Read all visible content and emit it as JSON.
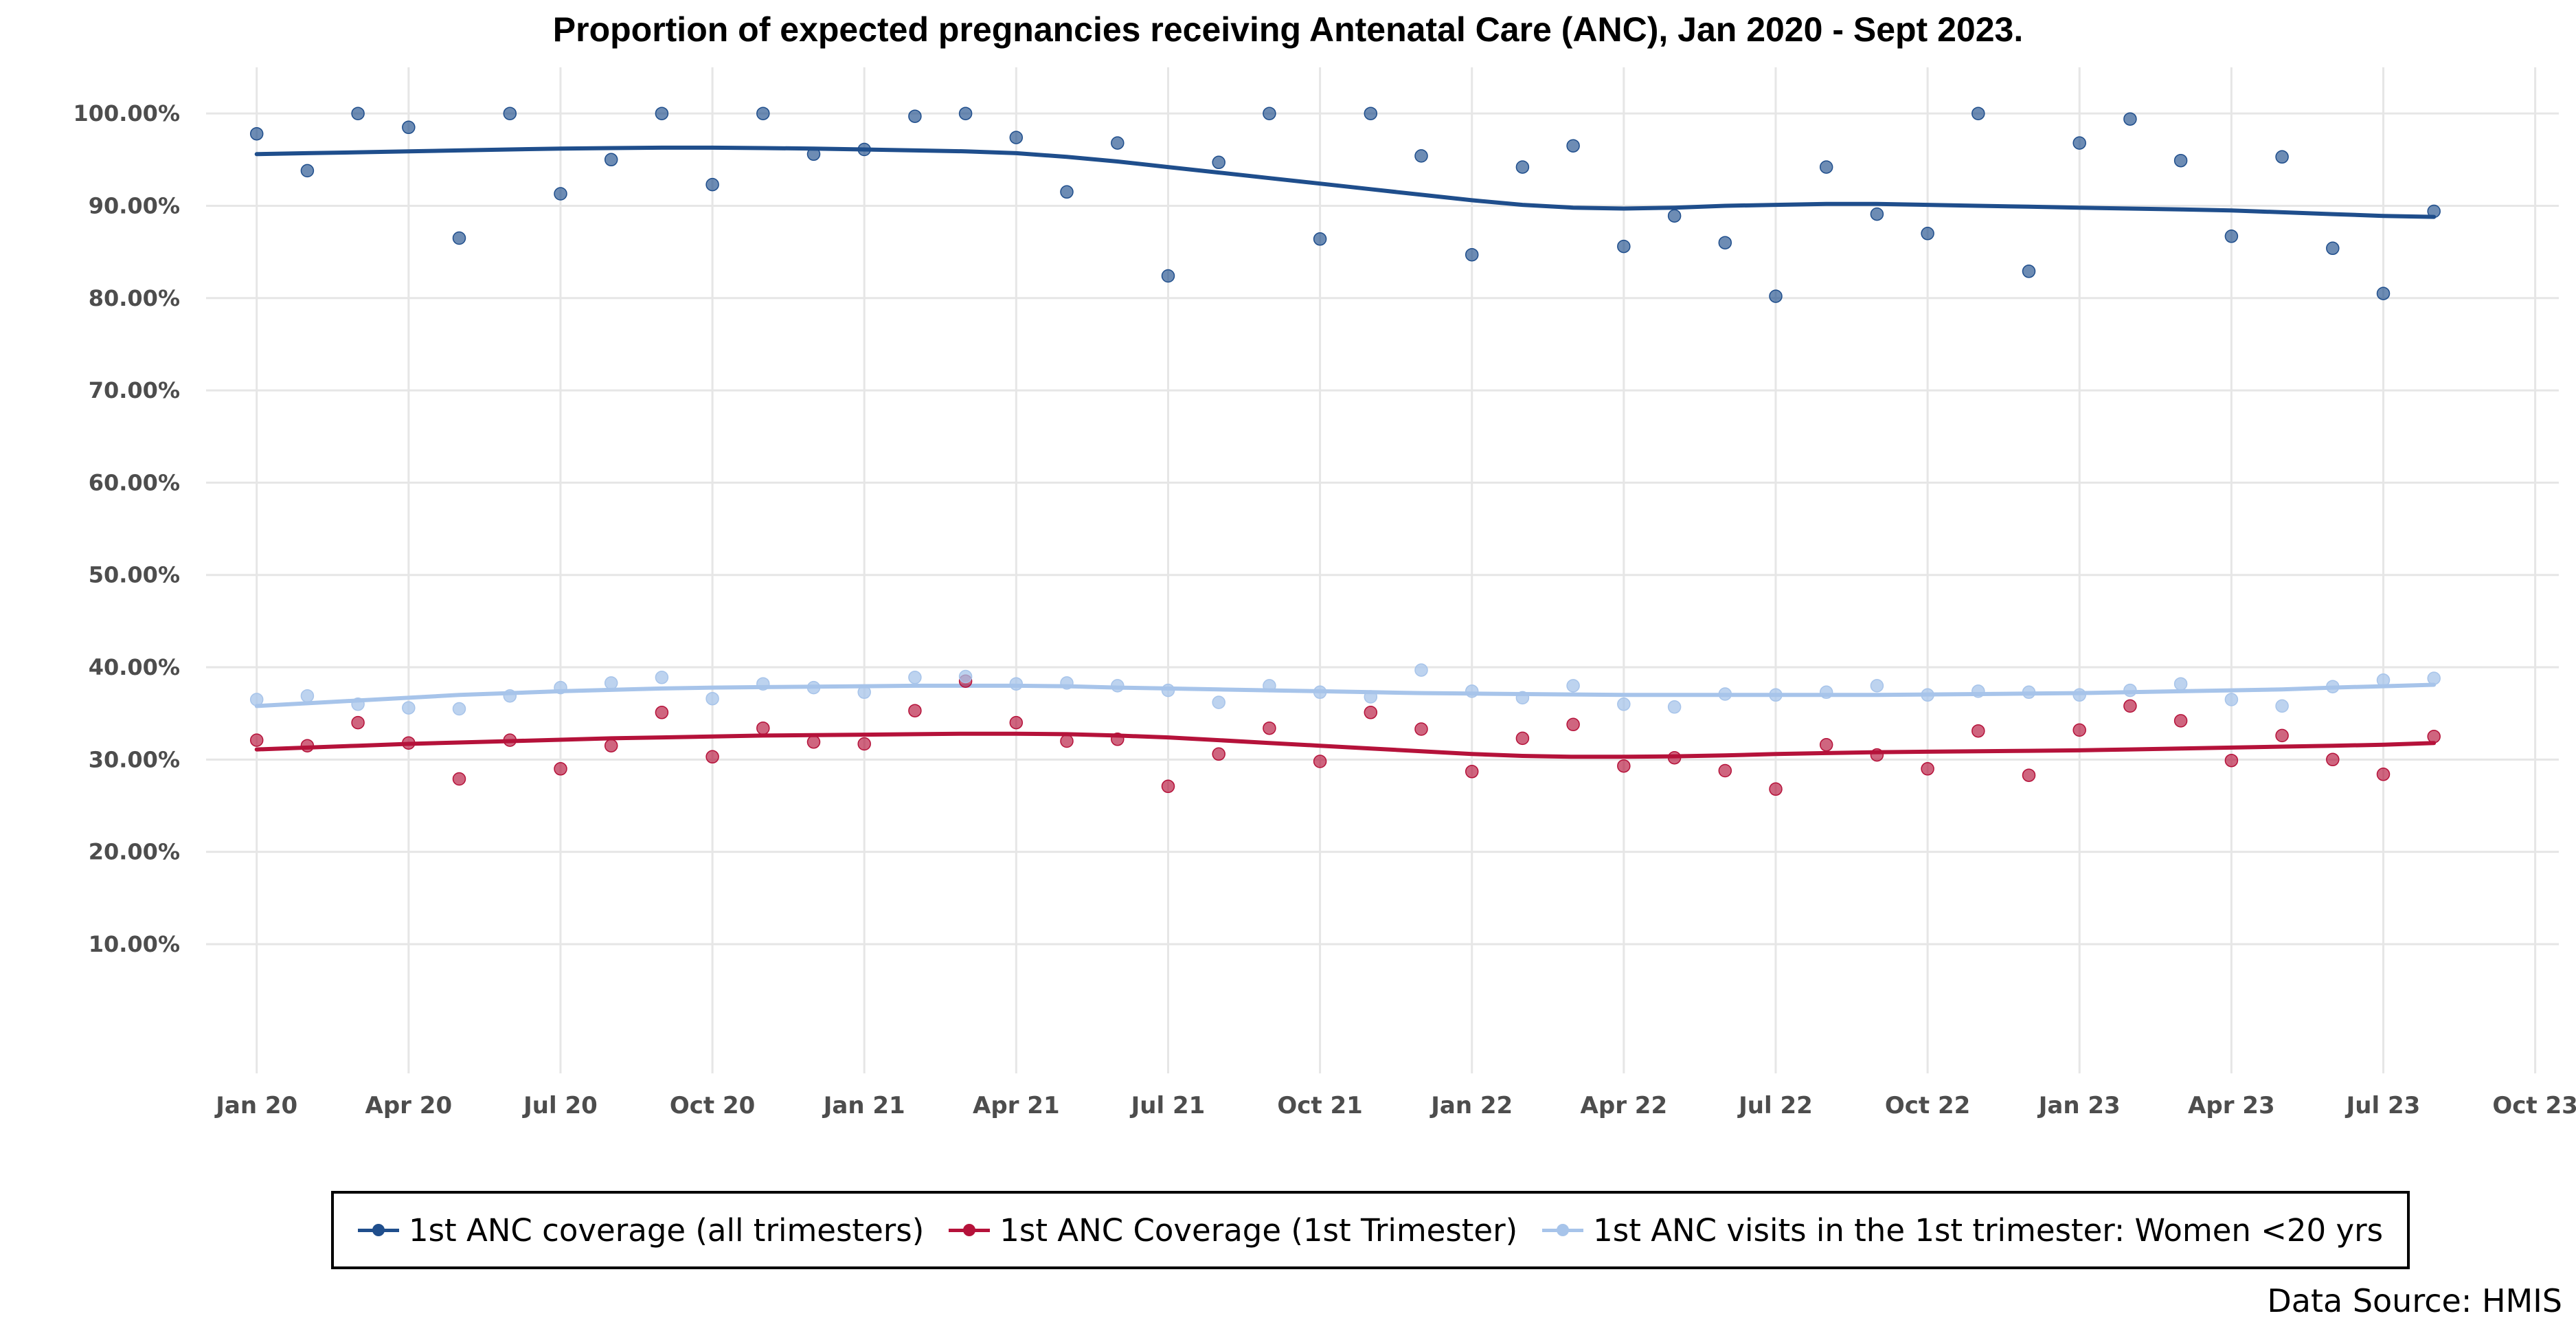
{
  "chart_data": {
    "type": "line",
    "title": "Proportion of expected pregnancies receiving Antenatal Care (ANC), Jan 2020 - Sept 2023.",
    "xlabel": "",
    "ylabel": "",
    "x_tick_labels": [
      "Jan 20",
      "Apr 20",
      "Jul 20",
      "Oct 20",
      "Jan 21",
      "Apr 21",
      "Jul 21",
      "Oct 21",
      "Jan 22",
      "Apr 22",
      "Jul 22",
      "Oct 22",
      "Jan 23",
      "Apr 23",
      "Jul 23",
      "Oct 23"
    ],
    "y_tick_labels": [
      "10.00%",
      "20.00%",
      "30.00%",
      "40.00%",
      "50.00%",
      "60.00%",
      "70.00%",
      "80.00%",
      "90.00%",
      "100.00%"
    ],
    "ylim": [
      -4,
      105
    ],
    "xlim": [
      "2019-12-01",
      "2023-10-15"
    ],
    "grid": true,
    "legend_position": "bottom",
    "months": [
      "2020-01",
      "2020-02",
      "2020-03",
      "2020-04",
      "2020-05",
      "2020-06",
      "2020-07",
      "2020-08",
      "2020-09",
      "2020-10",
      "2020-11",
      "2020-12",
      "2021-01",
      "2021-02",
      "2021-03",
      "2021-04",
      "2021-05",
      "2021-06",
      "2021-07",
      "2021-08",
      "2021-09",
      "2021-10",
      "2021-11",
      "2021-12",
      "2022-01",
      "2022-02",
      "2022-03",
      "2022-04",
      "2022-05",
      "2022-06",
      "2022-07",
      "2022-08",
      "2022-09",
      "2022-10",
      "2022-11",
      "2022-12",
      "2023-01",
      "2023-02",
      "2023-03",
      "2023-04",
      "2023-05",
      "2023-06",
      "2023-07",
      "2023-08"
    ],
    "series": [
      {
        "name": "1st ANC coverage (all trimesters)",
        "color": "#1f4e8c",
        "values": [
          97.8,
          93.8,
          100,
          98.5,
          86.5,
          100,
          91.3,
          95,
          100,
          92.3,
          100,
          95.6,
          96.1,
          99.7,
          100,
          97.4,
          91.5,
          96.8,
          82.4,
          94.7,
          100,
          86.4,
          100,
          95.4,
          84.7,
          94.2,
          96.5,
          85.6,
          88.9,
          86,
          80.2,
          94.2,
          89.1,
          87,
          100,
          82.9,
          96.8,
          99.4,
          94.9,
          86.7,
          95.3,
          85.4,
          80.5,
          89.4
        ],
        "trend": [
          95.6,
          95.7,
          95.8,
          95.9,
          96.0,
          96.1,
          96.2,
          96.25,
          96.3,
          96.3,
          96.25,
          96.2,
          96.1,
          96.0,
          95.9,
          95.7,
          95.3,
          94.8,
          94.2,
          93.6,
          93.0,
          92.4,
          91.8,
          91.2,
          90.6,
          90.1,
          89.8,
          89.7,
          89.8,
          90.0,
          90.1,
          90.2,
          90.2,
          90.1,
          90.0,
          89.9,
          89.8,
          89.7,
          89.6,
          89.5,
          89.3,
          89.1,
          88.9,
          88.8
        ]
      },
      {
        "name": "1st ANC Coverage (1st Trimester)",
        "color": "#b5123a",
        "values": [
          32.1,
          31.5,
          34,
          31.8,
          27.9,
          32.1,
          29,
          31.5,
          35.1,
          30.3,
          33.4,
          31.9,
          31.7,
          35.3,
          38.5,
          34,
          32,
          32.2,
          27.1,
          30.6,
          33.4,
          29.8,
          35.1,
          33.3,
          28.7,
          32.3,
          33.8,
          29.3,
          30.2,
          28.8,
          26.8,
          31.6,
          30.5,
          29,
          33.1,
          28.3,
          33.2,
          35.8,
          34.2,
          29.9,
          32.6,
          30,
          28.4,
          32.5
        ],
        "trend": [
          31.1,
          31.3,
          31.5,
          31.7,
          31.85,
          32.0,
          32.15,
          32.3,
          32.4,
          32.5,
          32.6,
          32.65,
          32.7,
          32.75,
          32.8,
          32.8,
          32.75,
          32.6,
          32.4,
          32.1,
          31.8,
          31.5,
          31.2,
          30.9,
          30.6,
          30.4,
          30.3,
          30.3,
          30.35,
          30.45,
          30.6,
          30.7,
          30.8,
          30.85,
          30.9,
          30.95,
          31.0,
          31.1,
          31.2,
          31.3,
          31.4,
          31.5,
          31.6,
          31.8
        ]
      },
      {
        "name": "1st ANC visits in the 1st trimester: Women <20 yrs",
        "color": "#a7c4ea",
        "values": [
          36.5,
          36.9,
          36,
          35.6,
          35.5,
          36.9,
          37.8,
          38.3,
          38.9,
          36.6,
          38.2,
          37.8,
          37.3,
          38.9,
          39,
          38.2,
          38.3,
          38,
          37.5,
          36.2,
          38,
          37.3,
          36.8,
          39.7,
          37.4,
          36.7,
          38,
          36,
          35.7,
          37.1,
          37,
          37.3,
          38,
          37,
          37.4,
          37.3,
          37,
          37.5,
          38.2,
          36.5,
          35.8,
          37.9,
          38.6,
          38.8
        ],
        "trend": [
          35.8,
          36.1,
          36.4,
          36.7,
          37.0,
          37.2,
          37.4,
          37.55,
          37.7,
          37.8,
          37.85,
          37.9,
          37.95,
          38.0,
          38.0,
          38.0,
          37.95,
          37.8,
          37.7,
          37.6,
          37.5,
          37.4,
          37.3,
          37.2,
          37.15,
          37.1,
          37.05,
          37.0,
          37.0,
          37.0,
          37.0,
          37.0,
          37.0,
          37.05,
          37.1,
          37.15,
          37.2,
          37.3,
          37.4,
          37.5,
          37.6,
          37.8,
          37.95,
          38.1
        ]
      }
    ]
  },
  "source_text": "Data Source: HMIS"
}
